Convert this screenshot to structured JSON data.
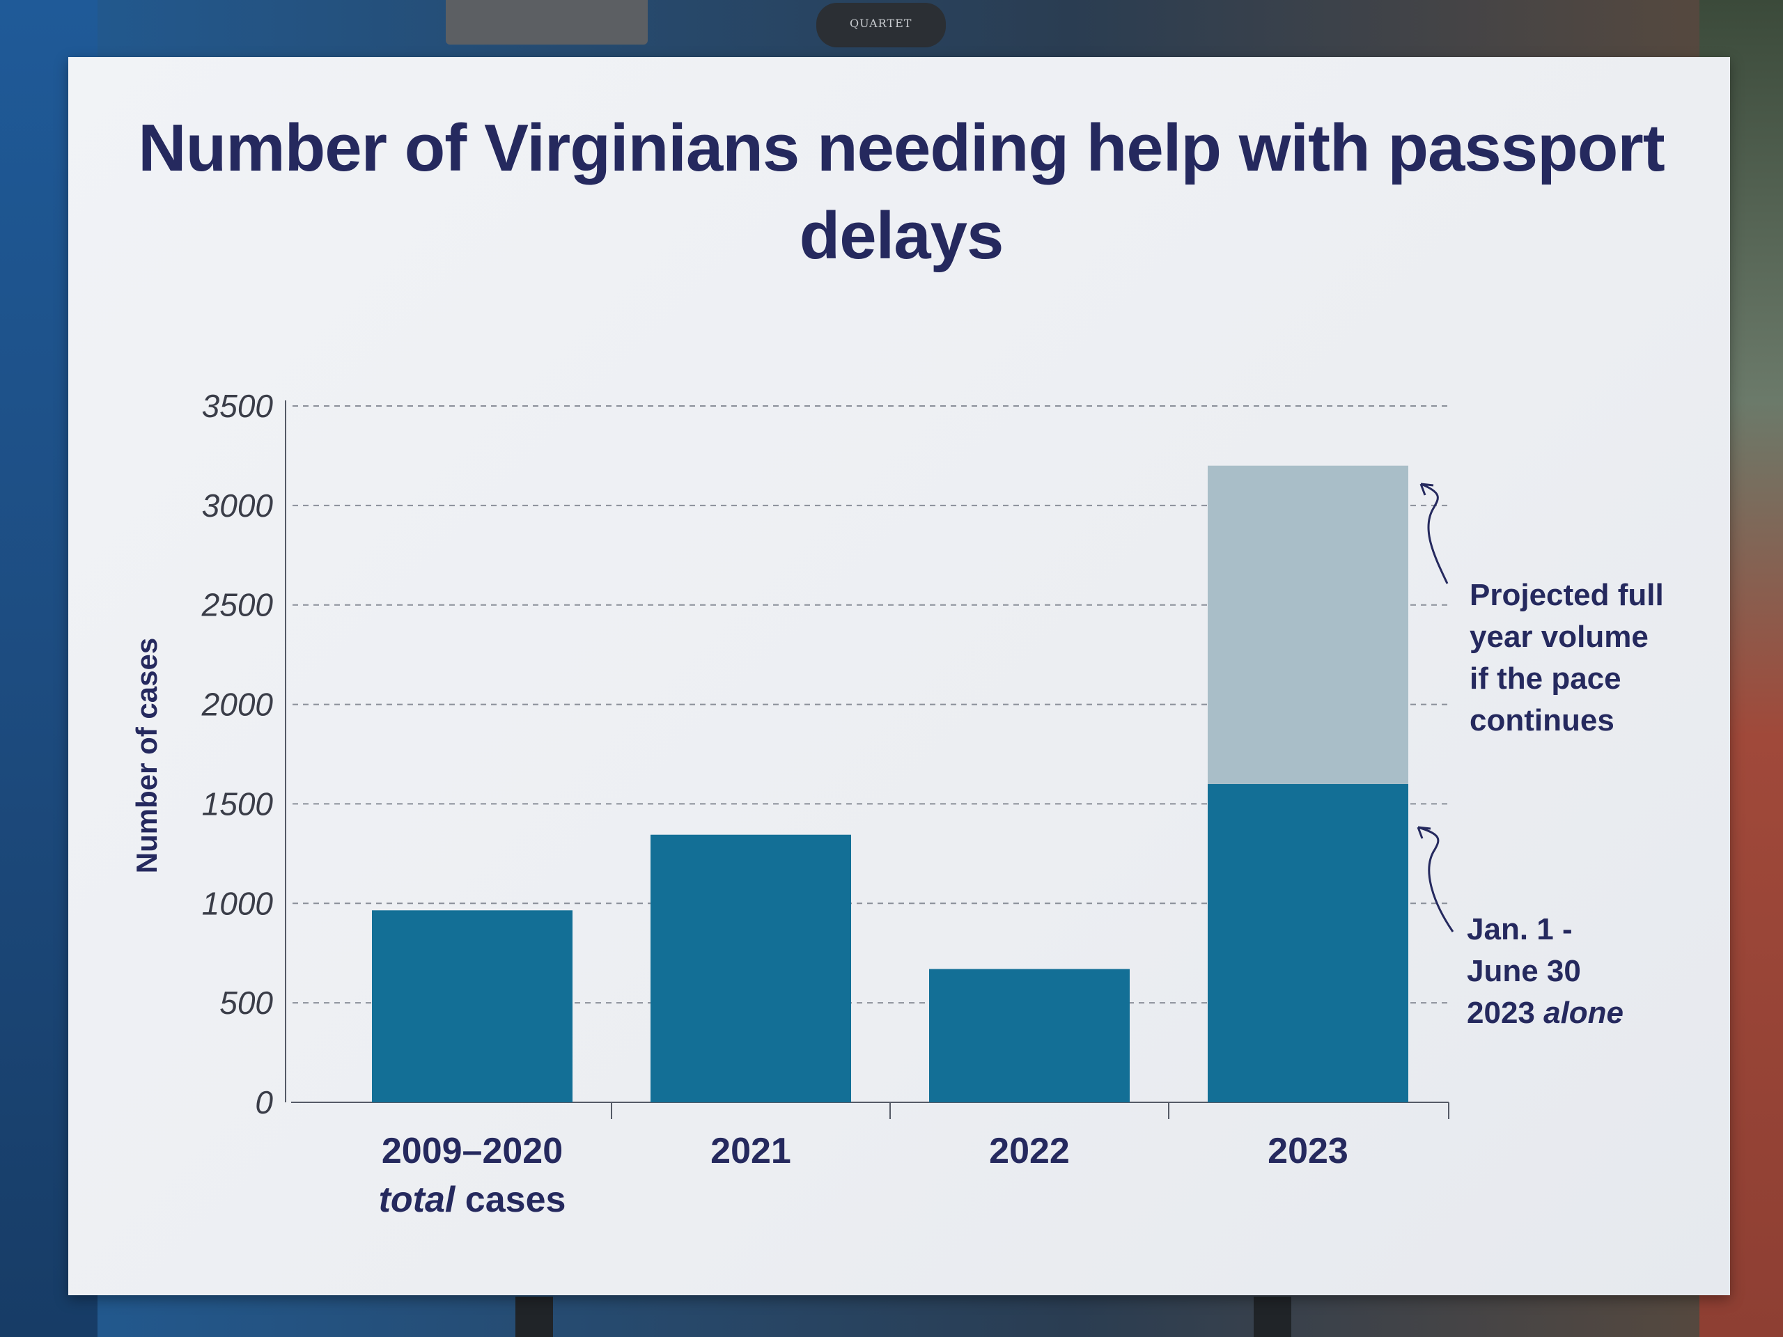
{
  "scene": {
    "easel_clip_label": "QUARTET"
  },
  "chart_data": {
    "type": "bar",
    "title": "Number of Virginians needing help with passport delays",
    "ylabel": "Number of cases",
    "xlabel": "",
    "ylim": [
      0,
      3500
    ],
    "yticks": [
      0,
      500,
      1000,
      1500,
      2000,
      2500,
      3000,
      3500
    ],
    "grid": "dashed-horizontal",
    "categories": [
      {
        "line1": "2009–2020",
        "line2_em": "total",
        "line2_rest": " cases"
      },
      {
        "line1": "2021"
      },
      {
        "line1": "2022"
      },
      {
        "line1": "2023"
      }
    ],
    "series": [
      {
        "name": "Jan. 1 - June 30 2023 alone",
        "values": [
          965,
          1345,
          670,
          1600
        ],
        "color": "#136f96"
      },
      {
        "name": "Projected full year volume if the pace continues",
        "values": [
          0,
          0,
          0,
          1600
        ],
        "color": "#a9bec8"
      }
    ],
    "stacked": true,
    "annotations": [
      {
        "target": "projected",
        "lines": [
          "Projected full",
          "year volume",
          "if the pace",
          "continues"
        ]
      },
      {
        "target": "actual",
        "lines": [
          "Jan. 1 -",
          "June 30"
        ],
        "last_line": "2023 ",
        "last_line_em": "alone"
      }
    ]
  }
}
